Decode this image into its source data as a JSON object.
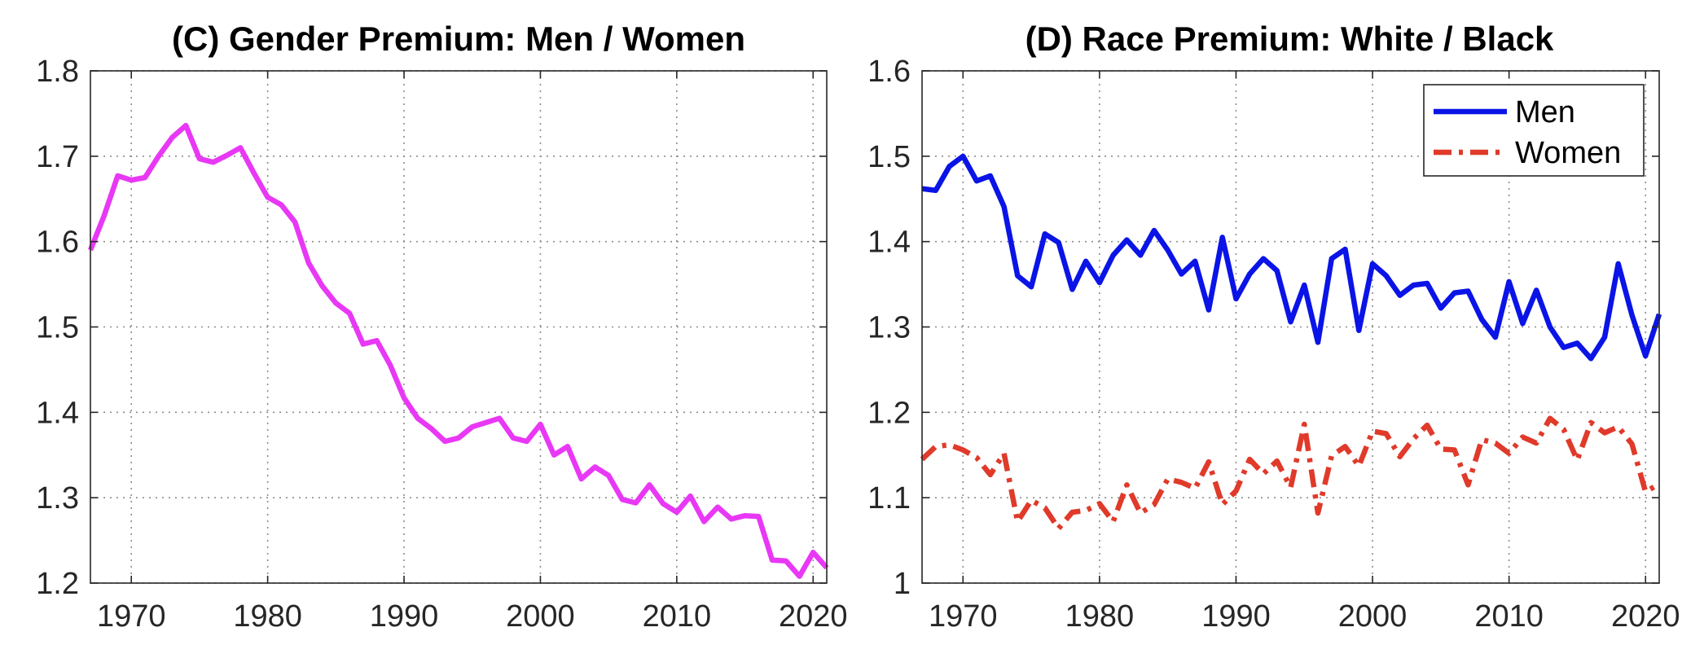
{
  "chart_data": [
    {
      "type": "line",
      "title": "(C) Gender Premium: Men / Women",
      "xlabel": "",
      "ylabel": "",
      "xlim": [
        1967,
        2021
      ],
      "ylim": [
        1.2,
        1.8
      ],
      "xticks": [
        1970,
        1980,
        1990,
        2000,
        2010,
        2020
      ],
      "yticks": [
        1.2,
        1.3,
        1.4,
        1.5,
        1.6,
        1.7,
        1.8
      ],
      "ytick_labels": [
        "1.2",
        "1.3",
        "1.4",
        "1.5",
        "1.6",
        "1.7",
        "1.8"
      ],
      "grid": true,
      "legend": null,
      "series": [
        {
          "color": "#e838f5",
          "style": "solid",
          "x": [
            1967,
            1968,
            1969,
            1970,
            1971,
            1972,
            1973,
            1974,
            1975,
            1976,
            1977,
            1978,
            1979,
            1980,
            1981,
            1982,
            1983,
            1984,
            1985,
            1986,
            1987,
            1988,
            1989,
            1990,
            1991,
            1992,
            1993,
            1994,
            1995,
            1996,
            1997,
            1998,
            1999,
            2000,
            2001,
            2002,
            2003,
            2004,
            2005,
            2006,
            2007,
            2008,
            2009,
            2010,
            2011,
            2012,
            2013,
            2014,
            2015,
            2016,
            2017,
            2018,
            2019,
            2020,
            2021
          ],
          "values": [
            1.59,
            1.63,
            1.677,
            1.672,
            1.675,
            1.7,
            1.722,
            1.736,
            1.697,
            1.693,
            1.701,
            1.71,
            1.68,
            1.652,
            1.643,
            1.623,
            1.575,
            1.548,
            1.528,
            1.516,
            1.48,
            1.484,
            1.455,
            1.417,
            1.393,
            1.381,
            1.366,
            1.37,
            1.383,
            1.388,
            1.393,
            1.37,
            1.366,
            1.386,
            1.35,
            1.36,
            1.322,
            1.336,
            1.326,
            1.298,
            1.294,
            1.315,
            1.293,
            1.283,
            1.302,
            1.272,
            1.289,
            1.275,
            1.279,
            1.278,
            1.227,
            1.226,
            1.208,
            1.236,
            1.218
          ]
        }
      ]
    },
    {
      "type": "line",
      "title": "(D) Race Premium: White / Black",
      "xlabel": "",
      "ylabel": "",
      "xlim": [
        1967,
        2021
      ],
      "ylim": [
        1.0,
        1.6
      ],
      "xticks": [
        1970,
        1980,
        1990,
        2000,
        2010,
        2020
      ],
      "yticks": [
        1.0,
        1.1,
        1.2,
        1.3,
        1.4,
        1.5,
        1.6
      ],
      "ytick_labels": [
        "1",
        "1.1",
        "1.2",
        "1.3",
        "1.4",
        "1.5",
        "1.6"
      ],
      "grid": true,
      "legend": "top-right",
      "series": [
        {
          "name": "Men",
          "color": "#0a14e6",
          "style": "solid",
          "x": [
            1967,
            1968,
            1969,
            1970,
            1971,
            1972,
            1973,
            1974,
            1975,
            1976,
            1977,
            1978,
            1979,
            1980,
            1981,
            1982,
            1983,
            1984,
            1985,
            1986,
            1987,
            1988,
            1989,
            1990,
            1991,
            1992,
            1993,
            1994,
            1995,
            1996,
            1997,
            1998,
            1999,
            2000,
            2001,
            2002,
            2003,
            2004,
            2005,
            2006,
            2007,
            2008,
            2009,
            2010,
            2011,
            2012,
            2013,
            2014,
            2015,
            2016,
            2017,
            2018,
            2019,
            2020,
            2021
          ],
          "values": [
            1.462,
            1.46,
            1.488,
            1.5,
            1.471,
            1.477,
            1.441,
            1.36,
            1.347,
            1.409,
            1.399,
            1.344,
            1.377,
            1.352,
            1.384,
            1.402,
            1.384,
            1.413,
            1.39,
            1.362,
            1.377,
            1.32,
            1.405,
            1.333,
            1.362,
            1.38,
            1.366,
            1.306,
            1.349,
            1.282,
            1.38,
            1.391,
            1.296,
            1.374,
            1.36,
            1.337,
            1.349,
            1.351,
            1.322,
            1.34,
            1.342,
            1.309,
            1.288,
            1.353,
            1.304,
            1.343,
            1.3,
            1.276,
            1.281,
            1.263,
            1.288,
            1.374,
            1.314,
            1.266,
            1.315
          ]
        },
        {
          "name": "Women",
          "color": "#e03a2a",
          "style": "dashdot",
          "x": [
            1967,
            1968,
            1969,
            1970,
            1971,
            1972,
            1973,
            1974,
            1975,
            1976,
            1977,
            1978,
            1979,
            1980,
            1981,
            1982,
            1983,
            1984,
            1985,
            1986,
            1987,
            1988,
            1989,
            1990,
            1991,
            1992,
            1993,
            1994,
            1995,
            1996,
            1997,
            1998,
            1999,
            2000,
            2001,
            2002,
            2003,
            2004,
            2005,
            2006,
            2007,
            2008,
            2009,
            2010,
            2011,
            2012,
            2013,
            2014,
            2015,
            2016,
            2017,
            2018,
            2019,
            2020,
            2021
          ],
          "values": [
            1.145,
            1.16,
            1.162,
            1.156,
            1.147,
            1.127,
            1.152,
            1.072,
            1.097,
            1.088,
            1.064,
            1.083,
            1.085,
            1.093,
            1.072,
            1.115,
            1.082,
            1.092,
            1.122,
            1.118,
            1.111,
            1.142,
            1.092,
            1.108,
            1.145,
            1.128,
            1.143,
            1.112,
            1.186,
            1.082,
            1.149,
            1.16,
            1.137,
            1.178,
            1.175,
            1.148,
            1.169,
            1.185,
            1.157,
            1.156,
            1.115,
            1.168,
            1.164,
            1.152,
            1.171,
            1.164,
            1.193,
            1.18,
            1.144,
            1.188,
            1.176,
            1.183,
            1.163,
            1.107,
            1.116
          ]
        }
      ]
    }
  ]
}
